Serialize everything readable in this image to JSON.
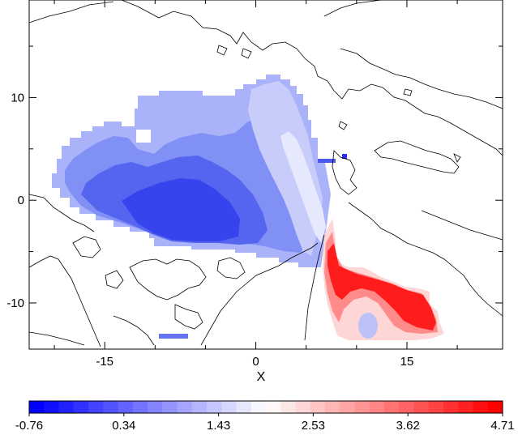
{
  "map": {
    "x_axis": {
      "label": "X",
      "ticks": [
        "-15",
        "0",
        "15"
      ],
      "tick_values": [
        -15,
        0,
        15
      ],
      "range": [
        -22.5,
        24.5
      ]
    },
    "y_axis": {
      "ticks": [
        "10",
        "0",
        "-10"
      ],
      "tick_values": [
        10,
        0,
        -10
      ],
      "range": [
        -14.5,
        19.5
      ]
    },
    "field": {
      "description_colors": {
        "low": "#1a1aff",
        "mid": "#ffffff",
        "high": "#ff0000"
      }
    }
  },
  "colorbar": {
    "labels": [
      "-0.76",
      "0.34",
      "1.43",
      "2.53",
      "3.62",
      "4.71"
    ],
    "min": -0.76,
    "max": 4.71,
    "n_levels": 32,
    "low_color": "#0000ff",
    "mid_color": "#ffffff",
    "high_color": "#ff0000"
  }
}
